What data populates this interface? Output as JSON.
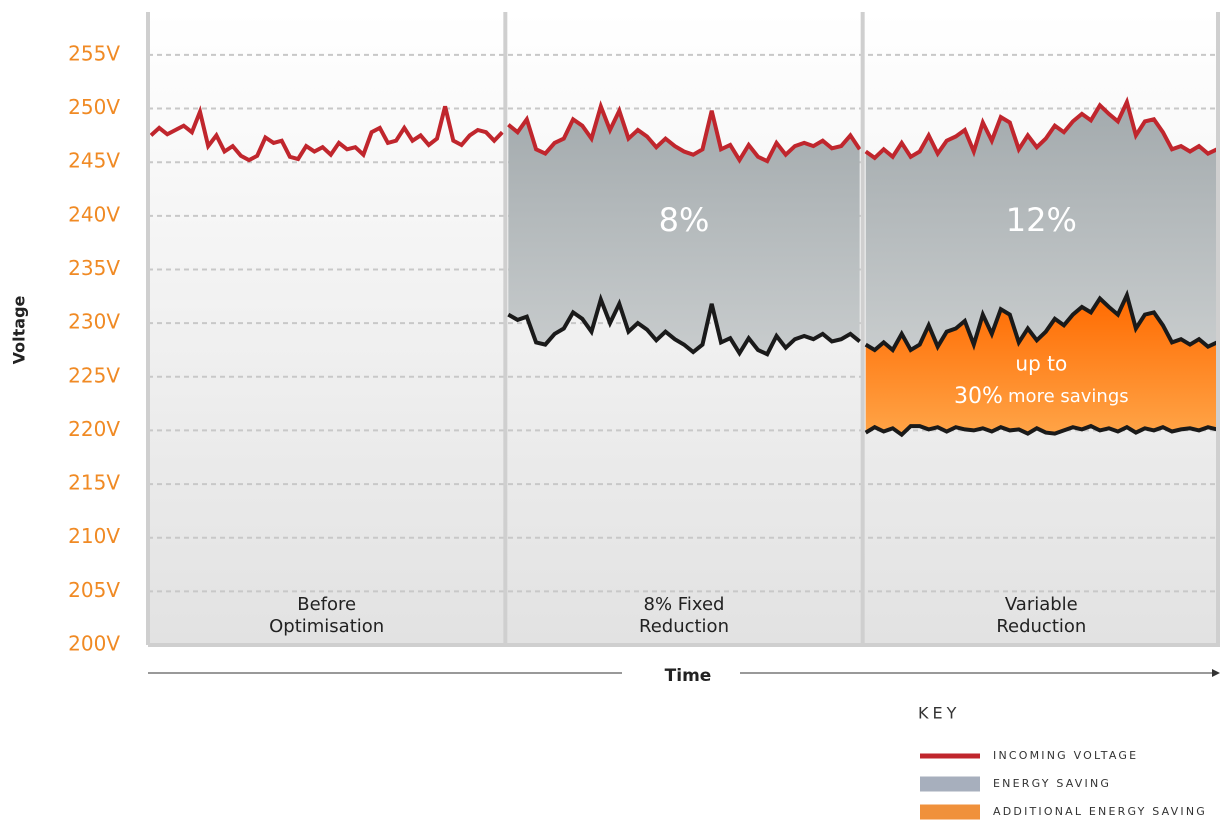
{
  "chart_data": {
    "type": "line",
    "ylabel": "Voltage",
    "xlabel": "Time",
    "ylim": [
      200,
      259
    ],
    "yticks": [
      {
        "value": 200,
        "label": "200V"
      },
      {
        "value": 205,
        "label": "205V"
      },
      {
        "value": 210,
        "label": "210V"
      },
      {
        "value": 215,
        "label": "215V"
      },
      {
        "value": 220,
        "label": "220V"
      },
      {
        "value": 225,
        "label": "225V"
      },
      {
        "value": 230,
        "label": "230V"
      },
      {
        "value": 235,
        "label": "235V"
      },
      {
        "value": 240,
        "label": "240V"
      },
      {
        "value": 245,
        "label": "245V"
      },
      {
        "value": 250,
        "label": "250V"
      },
      {
        "value": 255,
        "label": "255V"
      }
    ],
    "grid": true,
    "incoming_color": "#c0262d",
    "reduced_color": "#1a1a1a",
    "panels": [
      {
        "label": "Before Optimisation",
        "incoming": [
          247.5,
          248.2,
          247.6,
          248,
          248.4,
          247.8,
          249.7,
          246.5,
          247.5,
          246,
          246.5,
          245.6,
          245.2,
          245.6,
          247.3,
          246.8,
          247,
          245.5,
          245.3,
          246.5,
          246,
          246.4,
          245.7,
          246.8,
          246.2,
          246.4,
          245.7,
          247.8,
          248.2,
          246.8,
          247,
          248.2,
          247,
          247.5,
          246.6,
          247.2,
          250.2,
          247,
          246.6,
          247.5,
          248,
          247.8,
          247,
          247.8
        ]
      },
      {
        "label": "8% Fixed Reduction",
        "annotation": "8%",
        "incoming": [
          248.5,
          247.8,
          249,
          246.2,
          245.8,
          246.8,
          247.2,
          249,
          248.4,
          247.2,
          250.2,
          248,
          249.8,
          247.2,
          248,
          247.4,
          246.4,
          247.2,
          246.5,
          246,
          245.7,
          246.2,
          249.8,
          246.2,
          246.6,
          245.2,
          246.6,
          245.5,
          245.1,
          246.8,
          245.7,
          246.5,
          246.8,
          246.5,
          247,
          246.3,
          246.5,
          247.5,
          246.2
        ],
        "reduced": [
          230.8,
          230.3,
          230.6,
          228.2,
          228,
          229,
          229.5,
          231,
          230.4,
          229.2,
          232.2,
          230,
          231.8,
          229.2,
          230,
          229.4,
          228.4,
          229.2,
          228.5,
          228,
          227.3,
          228,
          231.8,
          228.2,
          228.6,
          227.2,
          228.6,
          227.5,
          227.1,
          228.8,
          227.7,
          228.5,
          228.8,
          228.5,
          229,
          228.3,
          228.5,
          229,
          228.3
        ]
      },
      {
        "label": "Variable Reduction",
        "annotation": "12%",
        "note_top": "up to",
        "note_value": "30%",
        "note_rest": "more savings",
        "incoming": [
          246,
          245.4,
          246.2,
          245.5,
          246.8,
          245.5,
          246,
          247.5,
          245.8,
          247,
          247.4,
          248,
          246,
          248.7,
          247,
          249.2,
          248.7,
          246.2,
          247.5,
          246.4,
          247.2,
          248.4,
          247.8,
          248.8,
          249.5,
          248.9,
          250.3,
          249.5,
          248.8,
          250.6,
          247.5,
          248.8,
          249,
          247.8,
          246.2,
          246.5,
          246,
          246.5,
          245.8,
          246.2
        ],
        "reduced": [
          228,
          227.5,
          228.2,
          227.5,
          229,
          227.5,
          228,
          229.8,
          227.8,
          229.2,
          229.5,
          230.2,
          228,
          230.8,
          229,
          231.3,
          230.8,
          228.2,
          229.5,
          228.4,
          229.2,
          230.4,
          229.8,
          230.8,
          231.5,
          231,
          232.3,
          231.5,
          230.8,
          232.6,
          229.5,
          230.8,
          231,
          229.8,
          228.2,
          228.5,
          228,
          228.5,
          227.8,
          228.2
        ],
        "variable": [
          219.8,
          220.3,
          219.9,
          220.2,
          219.6,
          220.4,
          220.4,
          220.1,
          220.3,
          219.9,
          220.3,
          220.1,
          220,
          220.2,
          219.9,
          220.3,
          220,
          220.1,
          219.7,
          220.2,
          219.8,
          219.7,
          220,
          220.3,
          220.1,
          220.4,
          220,
          220.2,
          219.9,
          220.3,
          219.8,
          220.2,
          220,
          220.3,
          219.9,
          220.1,
          220.2,
          220,
          220.3,
          220.1
        ]
      }
    ],
    "legend_title": "KEY",
    "legend": [
      {
        "name": "INCOMING VOLTAGE",
        "color": "#c0262d"
      },
      {
        "name": "ENERGY SAVING",
        "color": "#a7afbd"
      },
      {
        "name": "ADDITIONAL ENERGY SAVING",
        "color": "#f0913b"
      }
    ]
  }
}
